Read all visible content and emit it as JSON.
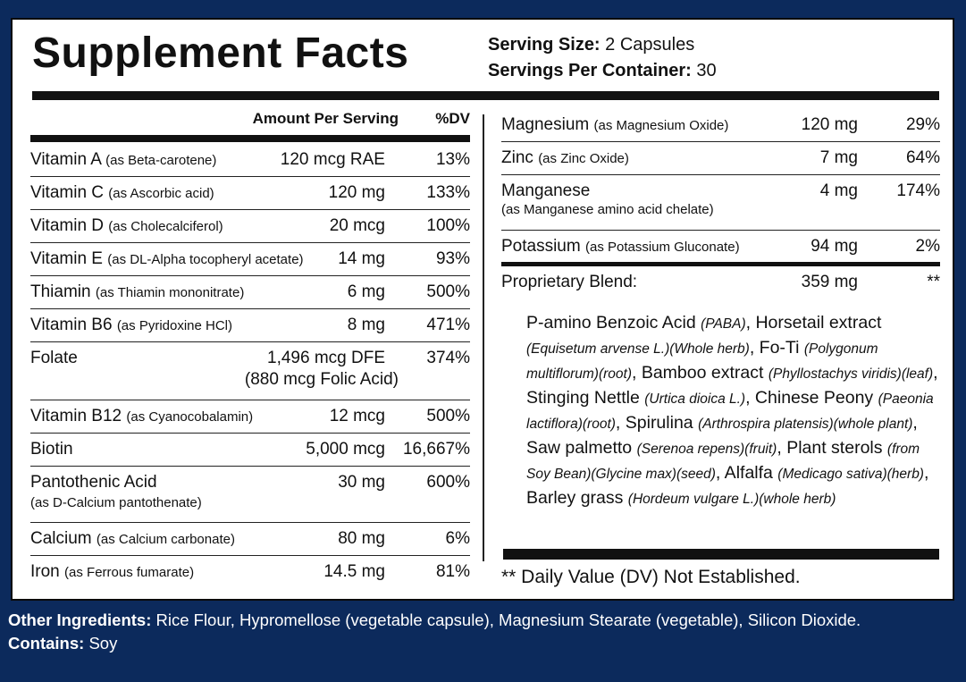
{
  "title": "Supplement Facts",
  "serving": {
    "size_label": "Serving Size:",
    "size_value": "2 Capsules",
    "per_container_label": "Servings Per Container:",
    "per_container_value": "30"
  },
  "table_header": {
    "amount": "Amount Per Serving",
    "dv": "%DV"
  },
  "left_rows": [
    {
      "name": "Vitamin A",
      "sub": "(as Beta-carotene)",
      "amount": "120 mcg RAE",
      "dv": "13%"
    },
    {
      "name": "Vitamin C",
      "sub": "(as Ascorbic acid)",
      "amount": "120 mg",
      "dv": "133%"
    },
    {
      "name": "Vitamin D",
      "sub": "(as Cholecalciferol)",
      "amount": "20 mcg",
      "dv": "100%"
    },
    {
      "name": "Vitamin E",
      "sub": "(as DL-Alpha tocopheryl acetate)",
      "amount": "14 mg",
      "dv": "93%"
    },
    {
      "name": "Thiamin",
      "sub": "(as Thiamin mononitrate)",
      "amount": "6 mg",
      "dv": "500%"
    },
    {
      "name": "Vitamin B6",
      "sub": "(as Pyridoxine HCl)",
      "amount": "8 mg",
      "dv": "471%"
    },
    {
      "name": "Folate",
      "sub": "",
      "amount": "1,496 mcg DFE",
      "amount2": "(880 mcg Folic Acid)",
      "dv": "374%"
    },
    {
      "name": "Vitamin B12",
      "sub": "(as Cyanocobalamin)",
      "amount": "12 mcg",
      "dv": "500%"
    },
    {
      "name": "Biotin",
      "sub": "",
      "amount": "5,000 mcg",
      "dv": "16,667%"
    },
    {
      "name": "Pantothenic Acid",
      "sub2": "(as  D-Calcium pantothenate)",
      "amount": "30 mg",
      "dv": "600%"
    },
    {
      "name": "Calcium",
      "sub": "(as Calcium carbonate)",
      "amount": "80 mg",
      "dv": "6%"
    },
    {
      "name": "Iron",
      "sub": "(as Ferrous fumarate)",
      "amount": "14.5 mg",
      "dv": "81%"
    }
  ],
  "right_rows": [
    {
      "name": "Magnesium",
      "sub": "(as Magnesium Oxide)",
      "amount": "120 mg",
      "dv": "29%"
    },
    {
      "name": "Zinc",
      "sub": "(as Zinc Oxide)",
      "amount": "7 mg",
      "dv": "64%"
    },
    {
      "name": "Manganese",
      "sub2": "(as Manganese amino acid chelate)",
      "amount": "4 mg",
      "dv": "174%"
    },
    {
      "name": "Potassium",
      "sub": "(as Potassium Gluconate)",
      "amount": "94 mg",
      "dv": "2%"
    },
    {
      "name": "Proprietary Blend:",
      "sub": "",
      "amount": "359 mg",
      "dv": "**"
    }
  ],
  "blend": {
    "p1": "P-amino Benzoic Acid ",
    "i1": "(PABA)",
    "p2": ", Horsetail extract ",
    "i2": "(Equisetum arvense L.)(Whole herb)",
    "p3": ", Fo-Ti ",
    "i3": "(Polygonum multiflorum)(root)",
    "p4": ", Bamboo extract ",
    "i4": "(Phyllostachys viridis)(leaf)",
    "p5": ", Stinging Nettle  ",
    "i5": "(Urtica dioica L.)",
    "p6": ", Chinese Peony ",
    "i6": "(Paeonia lactiflora)(root)",
    "p7": ", Spirulina ",
    "i7": "(Arthrospira platensis)(whole plant)",
    "p8": ", Saw palmetto ",
    "i8": "(Serenoa repens)(fruit)",
    "p9": ", Plant sterols ",
    "i9": "(from Soy Bean)(Glycine max)(seed)",
    "p10": ", Alfalfa ",
    "i10": "(Medicago sativa)(herb)",
    "p11": ", Barley grass ",
    "i11": "(Hordeum vulgare L.)(whole herb)"
  },
  "footnote": "** Daily Value (DV) Not Established.",
  "other": {
    "ingredients_label": "Other Ingredients:",
    "ingredients_value": " Rice Flour, Hypromellose (vegetable capsule), Magnesium Stearate (vegetable), Silicon Dioxide.",
    "contains_label": "Contains:",
    "contains_value": " Soy"
  },
  "colors": {
    "background": "#0c2a5c",
    "panel": "#ffffff",
    "text": "#111111"
  }
}
